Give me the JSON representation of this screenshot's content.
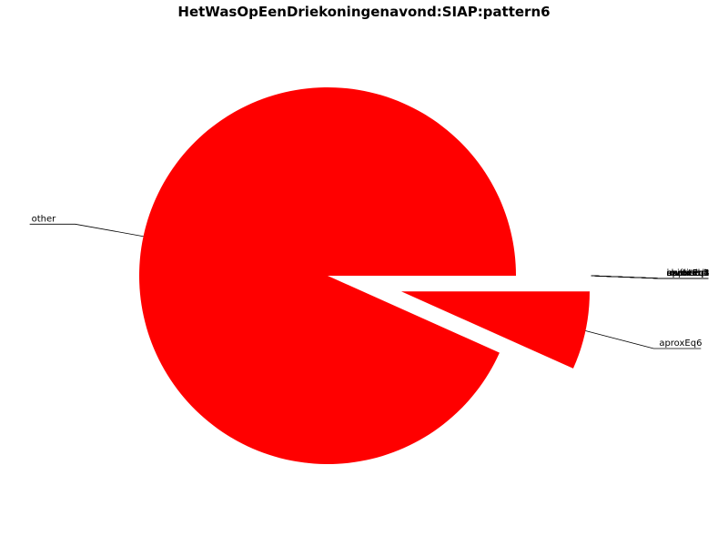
{
  "chart_data": {
    "type": "pie",
    "title": "HetWasOpEenDriekoningenavond:SIAP:pattern6",
    "color": "#ff0000",
    "slices": [
      {
        "label": "other",
        "value": 93.3,
        "exploded": false
      },
      {
        "label": "aproxEq6",
        "value": 6.7,
        "exploded": true
      },
      {
        "label": "aproxEq1",
        "value": 0,
        "exploded": true
      },
      {
        "label": "aproxEq2",
        "value": 0,
        "exploded": true
      },
      {
        "label": "aproxEq3",
        "value": 0,
        "exploded": true
      },
      {
        "label": "aproxEq4",
        "value": 0,
        "exploded": true
      },
      {
        "label": "aproxEq5",
        "value": 0,
        "exploded": true
      },
      {
        "label": "exact",
        "value": 0,
        "exploded": true
      },
      {
        "label": "implied",
        "value": 0,
        "exploded": true
      },
      {
        "label": "inverted",
        "value": 0,
        "exploded": true
      },
      {
        "label": "reversed",
        "value": 0,
        "exploded": true
      },
      {
        "label": "shifted",
        "value": 0,
        "exploded": true
      }
    ]
  }
}
